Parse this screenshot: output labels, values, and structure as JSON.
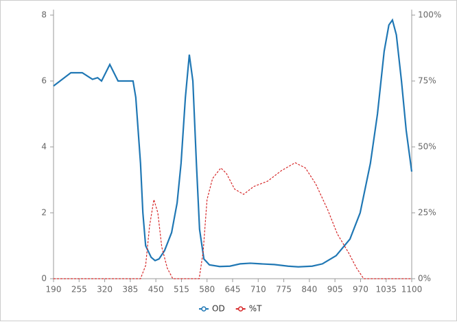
{
  "chart_data": {
    "type": "line",
    "xlim": [
      190,
      1100
    ],
    "xticks": [
      190,
      255,
      320,
      385,
      450,
      515,
      580,
      645,
      710,
      775,
      840,
      905,
      970,
      1035,
      1100
    ],
    "ylim": [
      0,
      8
    ],
    "yticks": [
      0,
      2,
      4,
      6,
      8
    ],
    "y2lim": [
      0,
      100
    ],
    "y2ticks": [
      {
        "value": 0,
        "label": "0%"
      },
      {
        "value": 25,
        "label": "25%"
      },
      {
        "value": 50,
        "label": "50%"
      },
      {
        "value": 75,
        "label": "75%"
      },
      {
        "value": 100,
        "label": "100%"
      }
    ],
    "legend": "bottom",
    "series": [
      {
        "name": "OD",
        "color": "#1f77b4",
        "x": [
          190,
          234,
          263,
          289,
          302,
          312,
          333,
          354,
          392,
          399,
          411,
          417,
          424,
          438,
          448,
          458,
          472,
          490,
          504,
          514,
          525,
          535,
          544,
          553,
          561,
          572,
          586,
          612,
          638,
          664,
          690,
          717,
          751,
          786,
          812,
          847,
          873,
          908,
          943,
          969,
          995,
          1013,
          1030,
          1042,
          1051,
          1061,
          1074,
          1086,
          1100
        ],
        "values": [
          5.85,
          6.25,
          6.25,
          6.05,
          6.1,
          6.0,
          6.5,
          6.0,
          6.0,
          5.5,
          3.5,
          2.0,
          1.0,
          0.65,
          0.55,
          0.6,
          0.85,
          1.4,
          2.3,
          3.5,
          5.5,
          6.8,
          6.0,
          3.5,
          1.5,
          0.6,
          0.42,
          0.37,
          0.38,
          0.45,
          0.47,
          0.45,
          0.43,
          0.38,
          0.36,
          0.38,
          0.45,
          0.7,
          1.2,
          2.0,
          3.5,
          5.0,
          6.9,
          7.7,
          7.85,
          7.4,
          6.0,
          4.5,
          3.25
        ]
      },
      {
        "name": "%T",
        "color": "#d62728",
        "axis": "y2",
        "dashed": true,
        "x": [
          190,
          411,
          424,
          434,
          445,
          455,
          465,
          479,
          493,
          560,
          570,
          580,
          594,
          615,
          629,
          650,
          673,
          699,
          734,
          769,
          804,
          830,
          856,
          887,
          911,
          939,
          960,
          978,
          1100
        ],
        "values": [
          0,
          0,
          5,
          20,
          30,
          25,
          12,
          4,
          0,
          0,
          10,
          30,
          38,
          42,
          40,
          34,
          32,
          35,
          37,
          41,
          44,
          42,
          36,
          26,
          17,
          10,
          4,
          0,
          0
        ]
      }
    ]
  }
}
